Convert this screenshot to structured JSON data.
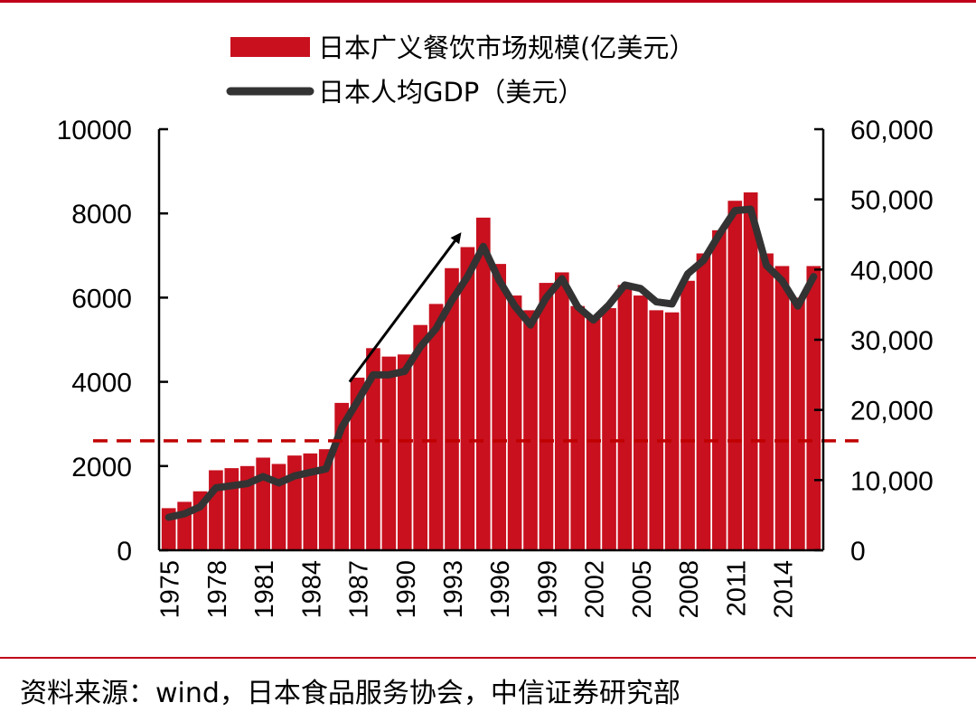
{
  "source_note": "资料来源：wind，日本食品服务协会，中信证券研究部",
  "colors": {
    "bar": "#c8101e",
    "line": "#333333",
    "reference_line": "#c00000",
    "rule": "#c0001a",
    "arrow": "#000000"
  },
  "chart_data": {
    "type": "bar",
    "title": "",
    "xlabel": "",
    "ylabel": "",
    "y2label": "",
    "legend_position": "top",
    "grid": false,
    "ylim": [
      0,
      10000
    ],
    "y2lim": [
      0,
      60000
    ],
    "yticks": [
      "0",
      "2000",
      "4000",
      "6000",
      "8000",
      "10000"
    ],
    "y2ticks": [
      "0",
      "10,000",
      "20,000",
      "30,000",
      "40,000",
      "50,000",
      "60,000"
    ],
    "xtick_labels": [
      "1975",
      "1978",
      "1981",
      "1984",
      "1987",
      "1990",
      "1993",
      "1996",
      "1999",
      "2002",
      "2005",
      "2008",
      "2011",
      "2014"
    ],
    "categories": [
      1975,
      1976,
      1977,
      1978,
      1979,
      1980,
      1981,
      1982,
      1983,
      1984,
      1985,
      1986,
      1987,
      1988,
      1989,
      1990,
      1991,
      1992,
      1993,
      1994,
      1995,
      1996,
      1997,
      1998,
      1999,
      2000,
      2001,
      2002,
      2003,
      2004,
      2005,
      2006,
      2007,
      2008,
      2009,
      2010,
      2011,
      2012,
      2013,
      2014,
      2015,
      2016
    ],
    "series": [
      {
        "name": "日本广义餐饮市场规模(亿美元）",
        "type": "bar",
        "axis": "left",
        "values": [
          1000,
          1150,
          1400,
          1900,
          1950,
          2000,
          2200,
          2050,
          2250,
          2300,
          2400,
          3500,
          4100,
          4800,
          4600,
          4650,
          5350,
          5850,
          6700,
          7200,
          7900,
          6800,
          6050,
          5700,
          6350,
          6600,
          5800,
          5500,
          5750,
          6300,
          6050,
          5700,
          5650,
          6400,
          7050,
          7600,
          8300,
          8500,
          7050,
          6750,
          6000,
          6750
        ]
      },
      {
        "name": "日本人均GDP（美元）",
        "type": "line",
        "axis": "right",
        "values": [
          4700,
          5200,
          6200,
          8900,
          9200,
          9500,
          10500,
          9600,
          10600,
          11100,
          11600,
          17500,
          21200,
          25000,
          25000,
          25500,
          29000,
          31600,
          35600,
          39000,
          43300,
          38500,
          34800,
          32100,
          36000,
          38700,
          34700,
          32800,
          35000,
          37800,
          37300,
          35400,
          35100,
          39400,
          41300,
          45000,
          48400,
          48600,
          40600,
          38400,
          34800,
          39000
        ]
      }
    ],
    "annotations": [
      {
        "type": "arrow",
        "from": [
          1986.5,
          4000
        ],
        "to": [
          1993.5,
          7500
        ]
      },
      {
        "type": "hline",
        "axis": "left",
        "value": 2600,
        "style": "dashed"
      }
    ]
  }
}
